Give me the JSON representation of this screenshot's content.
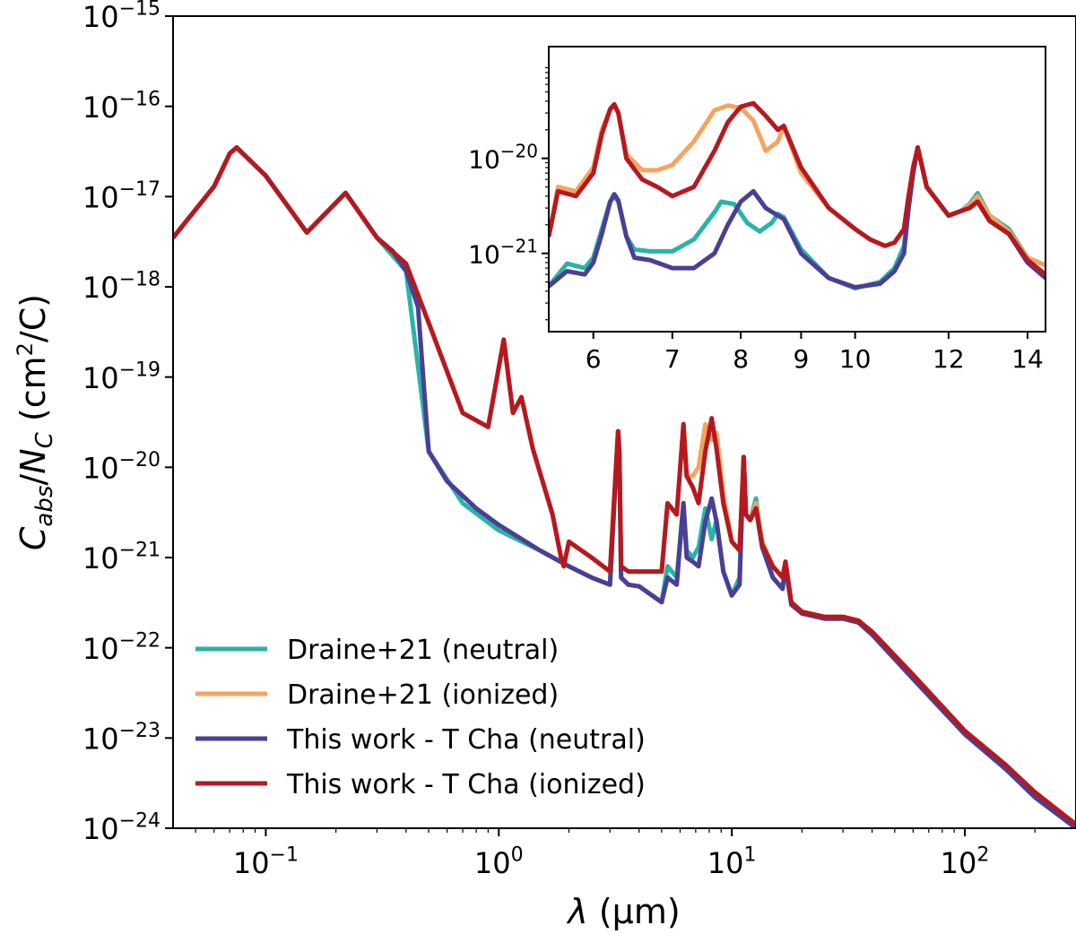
{
  "chart_data": [
    {
      "type": "line",
      "panel": "main",
      "xscale": "log",
      "yscale": "log",
      "xlim": [
        0.04,
        300
      ],
      "ylim": [
        1e-24,
        1e-15
      ],
      "x_ticks": [
        0.1,
        1,
        10,
        100
      ],
      "x_tick_labels": [
        {
          "base": "10",
          "exp": "−1"
        },
        {
          "base": "10",
          "exp": "0"
        },
        {
          "base": "10",
          "exp": "1"
        },
        {
          "base": "10",
          "exp": "2"
        }
      ],
      "y_ticks": [
        1e-24,
        1e-23,
        1e-22,
        1e-21,
        1e-20,
        1e-19,
        1e-18,
        1e-17,
        1e-16,
        1e-15
      ],
      "y_tick_labels": [
        {
          "base": "10",
          "exp": "−24"
        },
        {
          "base": "10",
          "exp": "−23"
        },
        {
          "base": "10",
          "exp": "−22"
        },
        {
          "base": "10",
          "exp": "−21"
        },
        {
          "base": "10",
          "exp": "−20"
        },
        {
          "base": "10",
          "exp": "−19"
        },
        {
          "base": "10",
          "exp": "−18"
        },
        {
          "base": "10",
          "exp": "−17"
        },
        {
          "base": "10",
          "exp": "−16"
        },
        {
          "base": "10",
          "exp": "−15"
        }
      ],
      "xlabel": {
        "lambda": "λ",
        "rest": " (μm)"
      },
      "ylabel": {
        "C": "C",
        "sub": "abs",
        "slash": "/",
        "N": "N",
        "subN": "C",
        "unit": " (cm",
        "sup": "2",
        "tail": "/C)"
      },
      "legend_position": "lower-left",
      "series": [
        {
          "name": "Draine+21 (neutral)",
          "color": "#2bb3a8",
          "x": [
            0.04,
            0.06,
            0.07,
            0.075,
            0.1,
            0.15,
            0.22,
            0.3,
            0.4,
            0.5,
            0.7,
            1,
            1.5,
            2,
            2.5,
            3,
            3.25,
            3.29,
            3.35,
            3.6,
            4,
            5,
            5.3,
            5.8,
            6.2,
            6.4,
            6.8,
            7.2,
            7.7,
            8.2,
            8.6,
            9.2,
            10,
            10.8,
            11.25,
            11.5,
            12,
            12.7,
            13.5,
            15,
            16.5,
            17,
            18,
            20,
            25,
            30,
            35,
            40,
            60,
            100,
            150,
            200,
            300
          ],
          "y": [
            3.5e-18,
            1.3e-17,
            3e-17,
            3.5e-17,
            1.7e-17,
            4e-18,
            1.1e-17,
            3.5e-18,
            1.5e-18,
            1.5e-20,
            4e-21,
            2e-21,
            1.2e-21,
            8e-22,
            6e-22,
            5e-22,
            2.5e-20,
            1.5e-20,
            6e-22,
            5e-22,
            4.8e-22,
            3.2e-22,
            8e-22,
            6e-22,
            4e-21,
            1.2e-21,
            1e-21,
            1.3e-21,
            3.5e-21,
            1.6e-21,
            2.6e-21,
            7e-22,
            3.8e-22,
            6e-22,
            1.3e-20,
            3e-21,
            2.6e-21,
            4.5e-21,
            1.4e-21,
            6e-22,
            4.5e-22,
            8e-22,
            3.2e-22,
            2.5e-22,
            2.2e-22,
            2.2e-22,
            2e-22,
            1.5e-22,
            5e-23,
            1.2e-23,
            5e-24,
            2.5e-24,
            1.1e-24
          ]
        },
        {
          "name": "Draine+21 (ionized)",
          "color": "#f5a460",
          "x": [
            0.04,
            0.06,
            0.07,
            0.075,
            0.1,
            0.15,
            0.22,
            0.3,
            0.4,
            0.5,
            0.7,
            0.9,
            1.05,
            1.15,
            1.25,
            1.4,
            1.7,
            1.85,
            1.9,
            2,
            2.5,
            3,
            3.25,
            3.29,
            3.35,
            3.6,
            4,
            5,
            5.3,
            5.8,
            6.2,
            6.4,
            6.8,
            7.2,
            7.7,
            8.2,
            8.6,
            9.2,
            10,
            10.8,
            11.25,
            11.5,
            12,
            12.7,
            13.5,
            15,
            16.5,
            17,
            18,
            20,
            25,
            30,
            35,
            40,
            60,
            100,
            150,
            200,
            300
          ],
          "y": [
            3.5e-18,
            1.3e-17,
            3e-17,
            3.5e-17,
            1.7e-17,
            4e-18,
            1.1e-17,
            3.5e-18,
            1.8e-18,
            4e-19,
            4e-20,
            2.8e-20,
            2.6e-19,
            4e-20,
            6e-20,
            1.6e-20,
            3e-21,
            1e-21,
            8e-22,
            1.5e-21,
            1e-21,
            7e-22,
            2.5e-20,
            1.5e-20,
            8e-22,
            7e-22,
            7e-22,
            7e-22,
            4e-21,
            3e-21,
            3e-20,
            8e-21,
            8e-21,
            1e-20,
            3e-20,
            2e-20,
            2.4e-20,
            5e-21,
            1.5e-21,
            1.2e-21,
            1.3e-20,
            3e-21,
            2.6e-21,
            4e-21,
            1.5e-21,
            8e-22,
            6e-22,
            9e-22,
            3.2e-22,
            2.5e-22,
            2.2e-22,
            2.2e-22,
            2e-22,
            1.5e-22,
            5e-23,
            1.2e-23,
            5e-24,
            2.5e-24,
            1.1e-24
          ]
        },
        {
          "name": "This work - T Cha (neutral)",
          "color": "#4b3f94",
          "x": [
            0.04,
            0.06,
            0.07,
            0.075,
            0.1,
            0.15,
            0.22,
            0.3,
            0.35,
            0.4,
            0.45,
            0.5,
            0.6,
            0.8,
            1,
            1.5,
            2,
            2.5,
            3,
            3.25,
            3.29,
            3.35,
            3.6,
            4,
            5,
            5.3,
            5.8,
            6.2,
            6.4,
            6.8,
            7.2,
            7.7,
            8.2,
            8.6,
            9.2,
            10,
            10.8,
            11.25,
            11.5,
            12,
            12.7,
            13.5,
            15,
            16.5,
            17,
            18,
            20,
            25,
            30,
            35,
            40,
            60,
            100,
            150,
            200,
            300
          ],
          "y": [
            3.5e-18,
            1.3e-17,
            3e-17,
            3.5e-17,
            1.7e-17,
            4e-18,
            1.1e-17,
            3.5e-18,
            2.5e-18,
            1.5e-18,
            6e-19,
            1.5e-20,
            7e-21,
            3.5e-21,
            2.3e-21,
            1.2e-21,
            8e-22,
            6e-22,
            5e-22,
            2.5e-20,
            1.5e-20,
            6e-22,
            5e-22,
            4.8e-22,
            3.2e-22,
            6e-22,
            5e-22,
            4e-21,
            1e-21,
            9e-22,
            8e-22,
            2.5e-21,
            4.5e-21,
            2.5e-21,
            7e-22,
            3.8e-22,
            5e-22,
            1.3e-20,
            3e-21,
            2.6e-21,
            3.5e-21,
            1.3e-21,
            6e-22,
            4.5e-22,
            8e-22,
            3e-22,
            2.4e-22,
            2.1e-22,
            2.1e-22,
            1.9e-22,
            1.4e-22,
            4.5e-23,
            1.1e-23,
            4.5e-24,
            2.2e-24,
            1e-24
          ]
        },
        {
          "name": "This work - T Cha (ionized)",
          "color": "#b5191f",
          "x": [
            0.04,
            0.06,
            0.07,
            0.075,
            0.1,
            0.15,
            0.22,
            0.3,
            0.4,
            0.5,
            0.7,
            0.9,
            1.05,
            1.15,
            1.25,
            1.4,
            1.7,
            1.85,
            1.9,
            2,
            2.5,
            3,
            3.25,
            3.29,
            3.35,
            3.6,
            4,
            5,
            5.3,
            5.8,
            6.2,
            6.4,
            6.8,
            7.2,
            7.7,
            8.2,
            8.6,
            9.2,
            10,
            10.8,
            11.25,
            11.5,
            12,
            12.7,
            13.5,
            15,
            16.5,
            17,
            18,
            20,
            25,
            30,
            35,
            40,
            60,
            100,
            150,
            200,
            300
          ],
          "y": [
            3.5e-18,
            1.3e-17,
            3e-17,
            3.5e-17,
            1.7e-17,
            4e-18,
            1.1e-17,
            3.5e-18,
            1.8e-18,
            4e-19,
            4e-20,
            2.8e-20,
            2.6e-19,
            4e-20,
            6e-20,
            1.6e-20,
            3e-21,
            1e-21,
            8e-22,
            1.5e-21,
            1e-21,
            7e-22,
            2.5e-20,
            1.5e-20,
            8e-22,
            7e-22,
            7e-22,
            7e-22,
            4e-21,
            3e-21,
            3e-20,
            8e-21,
            6e-21,
            4e-21,
            1.5e-20,
            3.5e-20,
            1.6e-20,
            4e-21,
            1.5e-21,
            1.2e-21,
            1.3e-20,
            3e-21,
            2.6e-21,
            3.5e-21,
            1.4e-21,
            8e-22,
            6e-22,
            9e-22,
            3.2e-22,
            2.5e-22,
            2.2e-22,
            2.2e-22,
            2e-22,
            1.5e-22,
            5e-23,
            1.2e-23,
            5e-24,
            2.5e-24,
            1.1e-24
          ]
        }
      ]
    },
    {
      "type": "line",
      "panel": "inset",
      "xscale": "log",
      "yscale": "log",
      "xlim": [
        5.5,
        14.5
      ],
      "ylim": [
        1.5e-22,
        1.5e-19
      ],
      "x_ticks": [
        6,
        7,
        8,
        9,
        10,
        12,
        14
      ],
      "x_tick_labels": [
        "6",
        "7",
        "8",
        "9",
        "10",
        "12",
        "14"
      ],
      "y_ticks": [
        1e-21,
        1e-20
      ],
      "y_tick_labels": [
        {
          "base": "10",
          "exp": "−21"
        },
        {
          "base": "10",
          "exp": "−20"
        }
      ],
      "series": [
        {
          "name": "Draine+21 (neutral)",
          "color": "#2bb3a8",
          "x": [
            5.5,
            5.7,
            5.9,
            6.0,
            6.1,
            6.2,
            6.25,
            6.3,
            6.4,
            6.5,
            6.7,
            7.0,
            7.3,
            7.6,
            7.7,
            7.9,
            8.1,
            8.3,
            8.5,
            8.6,
            8.7,
            9.0,
            9.5,
            10.0,
            10.5,
            10.8,
            11.0,
            11.1,
            11.2,
            11.3,
            11.5,
            12.0,
            12.3,
            12.5,
            12.7,
            13.0,
            13.5,
            14.0,
            14.5
          ],
          "y": [
            4.5e-22,
            7.8e-22,
            7e-22,
            9e-22,
            1.8e-21,
            3.5e-21,
            4e-21,
            3.5e-21,
            1.5e-21,
            1.1e-21,
            1.05e-21,
            1.05e-21,
            1.4e-21,
            2.7e-21,
            3.5e-21,
            3.3e-21,
            2.1e-21,
            1.7e-21,
            2.1e-21,
            2.6e-21,
            2.4e-21,
            1.1e-21,
            5.5e-22,
            4.3e-22,
            5e-22,
            7e-22,
            1.2e-21,
            3e-21,
            7e-21,
            1.3e-20,
            5e-21,
            2.5e-21,
            2.8e-21,
            3.3e-21,
            4.3e-21,
            2.5e-21,
            1.8e-21,
            9e-22,
            7.5e-22
          ]
        },
        {
          "name": "Draine+21 (ionized)",
          "color": "#f5a460",
          "x": [
            5.5,
            5.6,
            5.8,
            6.0,
            6.1,
            6.2,
            6.25,
            6.3,
            6.4,
            6.6,
            6.8,
            7.0,
            7.3,
            7.6,
            7.8,
            8.0,
            8.2,
            8.4,
            8.6,
            8.7,
            9.0,
            9.5,
            10.0,
            10.3,
            10.6,
            10.8,
            11.0,
            11.1,
            11.2,
            11.3,
            11.5,
            12.0,
            12.3,
            12.5,
            12.7,
            13.0,
            13.5,
            14.0,
            14.5
          ],
          "y": [
            1.5e-21,
            5e-21,
            4.5e-21,
            8e-21,
            2e-20,
            3.3e-20,
            3.6e-20,
            3e-20,
            1.1e-20,
            7.5e-21,
            7.5e-21,
            8.5e-21,
            1.5e-20,
            3.2e-20,
            3.6e-20,
            3.4e-20,
            2.5e-20,
            1.2e-20,
            1.5e-20,
            2.2e-20,
            7e-21,
            3e-21,
            1.8e-21,
            1.4e-21,
            1.2e-21,
            1.3e-21,
            1.8e-21,
            4e-21,
            8e-21,
            1.3e-20,
            5e-21,
            2.5e-21,
            2.8e-21,
            3.2e-21,
            4e-21,
            2.5e-21,
            1.7e-21,
            9e-22,
            7.5e-22
          ]
        },
        {
          "name": "This work - T Cha (neutral)",
          "color": "#4b3f94",
          "x": [
            5.5,
            5.7,
            5.9,
            6.0,
            6.1,
            6.2,
            6.25,
            6.3,
            6.4,
            6.5,
            6.7,
            7.0,
            7.3,
            7.6,
            7.8,
            8.0,
            8.2,
            8.4,
            8.6,
            8.7,
            9.0,
            9.5,
            10.0,
            10.5,
            10.8,
            11.0,
            11.1,
            11.2,
            11.3,
            11.5,
            12.0,
            12.3,
            12.5,
            12.7,
            13.0,
            13.5,
            14.0,
            14.5
          ],
          "y": [
            4.5e-22,
            6.5e-22,
            6e-22,
            8e-22,
            1.6e-21,
            3.5e-21,
            4.2e-21,
            3.6e-21,
            1.5e-21,
            9e-22,
            8.5e-22,
            7e-22,
            7e-22,
            1e-21,
            2e-21,
            3.5e-21,
            4.5e-21,
            3e-21,
            2.5e-21,
            2.3e-21,
            1e-21,
            5.5e-22,
            4.4e-22,
            4.8e-22,
            6.5e-22,
            1e-21,
            3e-21,
            7e-21,
            1.3e-20,
            5e-21,
            2.5e-21,
            2.8e-21,
            3e-21,
            3.5e-21,
            2.2e-21,
            1.6e-21,
            8e-22,
            5.5e-22
          ]
        },
        {
          "name": "This work - T Cha (ionized)",
          "color": "#b5191f",
          "x": [
            5.5,
            5.6,
            5.8,
            6.0,
            6.1,
            6.2,
            6.25,
            6.3,
            6.4,
            6.6,
            6.8,
            7.0,
            7.3,
            7.6,
            7.8,
            8.0,
            8.2,
            8.4,
            8.6,
            8.7,
            9.0,
            9.5,
            10.0,
            10.3,
            10.6,
            10.8,
            11.0,
            11.1,
            11.2,
            11.3,
            11.5,
            12.0,
            12.3,
            12.5,
            12.7,
            13.0,
            13.5,
            14.0,
            14.5
          ],
          "y": [
            1.5e-21,
            4.5e-21,
            4e-21,
            7e-21,
            1.8e-20,
            3.3e-20,
            3.7e-20,
            3e-20,
            1e-20,
            6e-21,
            5e-21,
            4e-21,
            5e-21,
            1.2e-20,
            2.4e-20,
            3.5e-20,
            3.8e-20,
            2.8e-20,
            2e-20,
            2.2e-20,
            8e-21,
            3e-21,
            1.8e-21,
            1.4e-21,
            1.2e-21,
            1.3e-21,
            1.8e-21,
            4e-21,
            8e-21,
            1.3e-20,
            5e-21,
            2.5e-21,
            2.8e-21,
            3e-21,
            3.5e-21,
            2.2e-21,
            1.6e-21,
            8.5e-22,
            6e-22
          ]
        }
      ]
    }
  ]
}
